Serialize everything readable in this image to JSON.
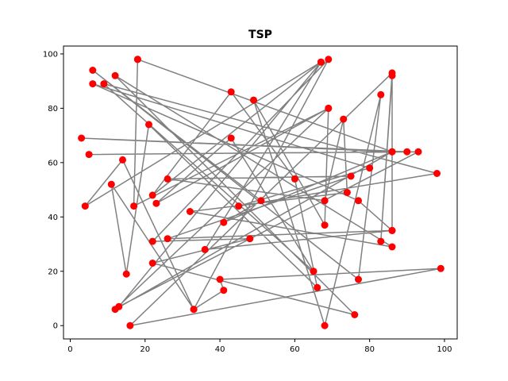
{
  "chart_data": {
    "type": "scatter",
    "title": "TSP",
    "xlabel": "",
    "ylabel": "",
    "xlim": [
      -1.8,
      103.4
    ],
    "ylim": [
      -4.9,
      102.9
    ],
    "xticks": [
      0,
      20,
      40,
      60,
      80,
      100
    ],
    "yticks": [
      0,
      20,
      40,
      60,
      80,
      100
    ],
    "grid": false,
    "colors": {
      "point": "#ff0000",
      "route": "#808080",
      "axis": "#000000"
    },
    "route": [
      [
        18,
        98
      ],
      [
        86,
        64
      ],
      [
        3,
        69
      ],
      [
        90,
        64
      ],
      [
        5,
        63
      ],
      [
        93,
        64
      ],
      [
        13,
        7
      ],
      [
        67,
        97
      ],
      [
        4,
        44
      ],
      [
        14,
        61
      ],
      [
        33,
        6
      ],
      [
        11,
        52
      ],
      [
        15,
        19
      ],
      [
        21,
        74
      ],
      [
        66,
        14
      ],
      [
        60,
        54
      ],
      [
        43,
        86
      ],
      [
        22,
        48
      ],
      [
        67,
        97
      ],
      [
        36,
        28
      ],
      [
        86,
        35
      ],
      [
        26,
        32
      ],
      [
        75,
        55
      ],
      [
        26,
        54
      ],
      [
        68,
        46
      ],
      [
        73,
        76
      ],
      [
        74,
        49
      ],
      [
        32,
        42
      ],
      [
        86,
        29
      ],
      [
        12,
        92
      ],
      [
        76,
        4
      ],
      [
        22,
        23
      ],
      [
        48,
        32
      ],
      [
        22,
        31
      ],
      [
        69,
        98
      ],
      [
        33,
        6
      ],
      [
        41,
        13
      ],
      [
        40,
        17
      ],
      [
        99,
        21
      ],
      [
        16,
        0
      ],
      [
        86,
        93
      ],
      [
        83,
        31
      ],
      [
        86,
        92
      ],
      [
        86,
        35
      ],
      [
        77,
        46
      ],
      [
        6,
        89
      ],
      [
        80,
        58
      ],
      [
        45,
        44
      ],
      [
        98,
        56
      ],
      [
        9,
        89
      ],
      [
        65,
        20
      ],
      [
        43,
        69
      ],
      [
        23,
        45
      ],
      [
        69,
        80
      ],
      [
        68,
        37
      ],
      [
        49,
        83
      ],
      [
        68,
        0
      ],
      [
        83,
        85
      ],
      [
        77,
        17
      ],
      [
        6,
        94
      ],
      [
        51,
        46
      ],
      [
        41,
        38
      ],
      [
        86,
        64
      ],
      [
        12,
        6
      ],
      [
        69,
        80
      ],
      [
        17,
        44
      ],
      [
        18,
        98
      ]
    ]
  }
}
